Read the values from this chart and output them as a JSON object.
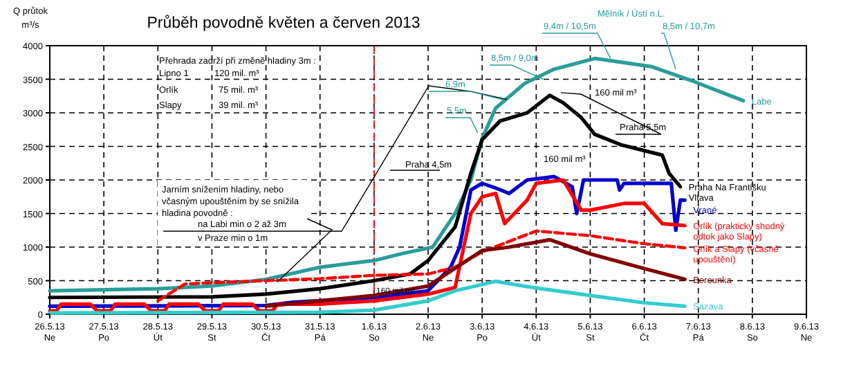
{
  "chart_data": {
    "type": "line",
    "title": "Průběh povodně květen a červen 2013",
    "ylabel": "Q průtok\nm³/s",
    "xlim": [
      "2013-05-26T00:00",
      "2013-06-09T00:00"
    ],
    "xticks": [
      {
        "value": "2013-05-26",
        "label": "26.5.13\nNe"
      },
      {
        "value": "2013-05-27",
        "label": "27.5.13\nPo"
      },
      {
        "value": "2013-05-28",
        "label": "28.5.13\nÚt"
      },
      {
        "value": "2013-05-29",
        "label": "29.5.13\nSt"
      },
      {
        "value": "2013-05-30",
        "label": "30.5.13\nČt"
      },
      {
        "value": "2013-05-31",
        "label": "31.5.13\nPá"
      },
      {
        "value": "2013-06-01",
        "label": "1.6.13\nSo"
      },
      {
        "value": "2013-06-02",
        "label": "2.6.13\nNe"
      },
      {
        "value": "2013-06-03",
        "label": "3.6.13\nPo"
      },
      {
        "value": "2013-06-04",
        "label": "4.6.13\nÚt"
      },
      {
        "value": "2013-06-05",
        "label": "5.6.13\nSt"
      },
      {
        "value": "2013-06-06",
        "label": "6.6.13\nČt"
      },
      {
        "value": "2013-06-07",
        "label": "7.6.13\nPá"
      },
      {
        "value": "2013-06-08",
        "label": "8.6.13\nSo"
      },
      {
        "value": "2013-06-09",
        "label": "9.6.13\nNe"
      }
    ],
    "ylim": [
      0,
      4000
    ],
    "yticks": [
      0,
      500,
      1000,
      1500,
      2000,
      2500,
      3000,
      3500,
      4000
    ],
    "grid": true,
    "ref_lines": [
      {
        "axis": "x",
        "value": "2013-06-01",
        "color": "#ff0000",
        "line_style": "dashed"
      }
    ],
    "series": [
      {
        "name": "Labe",
        "color": "#2a9d9a",
        "x": [
          "2013-05-26T00:00",
          "2013-05-28T00:00",
          "2013-05-29T00:00",
          "2013-05-30T00:00",
          "2013-05-31T00:00",
          "2013-06-01T00:00",
          "2013-06-01T12:00",
          "2013-06-02T02:00",
          "2013-06-02T12:00",
          "2013-06-02T19:00",
          "2013-06-03T00:00",
          "2013-06-03T06:00",
          "2013-06-03T19:00",
          "2013-06-04T08:00",
          "2013-06-05T02:00",
          "2013-06-06T03:00",
          "2013-06-06T21:00",
          "2013-06-07T20:00"
        ],
        "values": [
          350,
          380,
          420,
          520,
          700,
          800,
          900,
          1000,
          1500,
          2000,
          2620,
          3070,
          3440,
          3650,
          3810,
          3690,
          3480,
          3180
        ]
      },
      {
        "name": "Praha Na Františku\nVltava",
        "color": "#000000",
        "x": [
          "2013-05-26T00:00",
          "2013-05-29T00:00",
          "2013-05-30T00:00",
          "2013-05-31T00:00",
          "2013-06-01T00:00",
          "2013-06-01T16:00",
          "2013-06-02T00:00",
          "2013-06-02T12:00",
          "2013-06-02T19:00",
          "2013-06-03T00:00",
          "2013-06-03T08:00",
          "2013-06-03T20:00",
          "2013-06-04T06:00",
          "2013-06-04T12:00",
          "2013-06-04T20:00",
          "2013-06-05T02:00",
          "2013-06-05T14:00",
          "2013-06-06T08:00",
          "2013-06-06T11:00",
          "2013-06-06T16:00"
        ],
        "values": [
          250,
          260,
          300,
          380,
          500,
          600,
          800,
          1300,
          2100,
          2600,
          2880,
          3000,
          3260,
          3150,
          2930,
          2680,
          2520,
          2370,
          2100,
          1900
        ]
      },
      {
        "name": "Vrané",
        "color": "#0000cc",
        "x": [
          "2013-05-26T00:00",
          "2013-05-30T00:00",
          "2013-05-30T12:00",
          "2013-06-01T00:00",
          "2013-06-02T00:00",
          "2013-06-02T10:00",
          "2013-06-02T14:00",
          "2013-06-02T19:00",
          "2013-06-03T00:00",
          "2013-06-03T06:00",
          "2013-06-03T12:00",
          "2013-06-03T20:00",
          "2013-06-04T08:00",
          "2013-06-04T16:00",
          "2013-06-04T18:00",
          "2013-06-04T21:00",
          "2013-06-05T12:00",
          "2013-06-05T13:00",
          "2013-06-05T15:00",
          "2013-06-06T12:00",
          "2013-06-06T14:00",
          "2013-06-06T16:00",
          "2013-06-06T18:00"
        ],
        "values": [
          120,
          130,
          180,
          250,
          350,
          700,
          1000,
          1850,
          1950,
          1880,
          1800,
          2000,
          2050,
          1900,
          1500,
          2000,
          2000,
          1850,
          1950,
          1950,
          1250,
          1700,
          1700
        ]
      },
      {
        "name": "Orlík  (prakticky shodný\nodtok jako Slapy)",
        "color": "#ff0000",
        "x": [
          "2013-05-26T00:00",
          "2013-05-26T03:00",
          "2013-05-26T05:00",
          "2013-05-26T18:00",
          "2013-05-26T21:00",
          "2013-05-27T03:00",
          "2013-05-27T05:00",
          "2013-05-27T18:00",
          "2013-05-27T21:00",
          "2013-05-28T03:00",
          "2013-05-28T05:00",
          "2013-05-28T18:00",
          "2013-05-28T21:00",
          "2013-05-29T03:00",
          "2013-05-29T05:00",
          "2013-05-29T18:00",
          "2013-05-29T21:00",
          "2013-05-30T03:00",
          "2013-05-30T05:00",
          "2013-05-31T00:00",
          "2013-06-01T00:00",
          "2013-06-02T00:00",
          "2013-06-02T12:00",
          "2013-06-02T19:00",
          "2013-06-03T00:00",
          "2013-06-03T06:00",
          "2013-06-03T10:00",
          "2013-06-03T20:00",
          "2013-06-04T00:00",
          "2013-06-04T12:00",
          "2013-06-04T20:00",
          "2013-06-05T00:00",
          "2013-06-05T15:00",
          "2013-06-06T00:00",
          "2013-06-06T08:00",
          "2013-06-06T18:00"
        ],
        "values": [
          50,
          50,
          150,
          150,
          50,
          50,
          150,
          150,
          50,
          50,
          150,
          150,
          50,
          50,
          150,
          150,
          50,
          50,
          150,
          150,
          200,
          300,
          400,
          1500,
          1750,
          1800,
          1350,
          1700,
          1950,
          2000,
          1550,
          1550,
          1650,
          1650,
          1350,
          1320
        ]
      },
      {
        "name": "Orlík a Slapy (včasné\nupouštění)",
        "color": "#ff0000",
        "line_style": "dashed",
        "x": [
          "2013-05-28T00:00",
          "2013-05-28T12:00",
          "2013-05-29T00:00",
          "2013-05-30T00:00",
          "2013-05-31T00:00",
          "2013-06-01T00:00",
          "2013-06-02T00:00",
          "2013-06-02T12:00",
          "2013-06-03T00:00",
          "2013-06-04T00:00",
          "2013-06-05T00:00",
          "2013-06-06T00:00",
          "2013-06-06T18:00"
        ],
        "values": [
          200,
          450,
          470,
          500,
          530,
          580,
          600,
          700,
          930,
          1240,
          1170,
          1050,
          990
        ]
      },
      {
        "name": "Berounka",
        "color": "#800000",
        "x": [
          "2013-05-30T00:00",
          "2013-05-31T00:00",
          "2013-06-01T00:00",
          "2013-06-02T00:00",
          "2013-06-03T00:00",
          "2013-06-03T12:00",
          "2013-06-04T06:00",
          "2013-06-05T00:00",
          "2013-06-06T00:00",
          "2013-06-06T18:00"
        ],
        "values": [
          120,
          200,
          280,
          420,
          950,
          1000,
          1110,
          900,
          680,
          520
        ]
      },
      {
        "name": "Sázava",
        "color": "#33cccc",
        "x": [
          "2013-05-26T00:00",
          "2013-05-31T00:00",
          "2013-06-01T00:00",
          "2013-06-02T00:00",
          "2013-06-02T12:00",
          "2013-06-03T06:00",
          "2013-06-04T00:00",
          "2013-06-05T00:00",
          "2013-06-06T00:00",
          "2013-06-06T18:00"
        ],
        "values": [
          20,
          30,
          60,
          200,
          350,
          490,
          390,
          280,
          170,
          120
        ]
      }
    ],
    "annotations": [
      "Přehrada zadrží při změně hladiny 3m :",
      "Lipno 1",
      "120 mil. m³",
      "Orlík",
      "75 mil. m³",
      "Slapy",
      "39 mil. m³",
      {
        "text": "Jarním snížením hladiny, nebo\nvčasným upouštěním by se snížila\nhladina povodně :",
        "x": "2013-05-30T05:00",
        "y": 480
      },
      {
        "text": "na Labi min o 2 až 3m",
        "x": "2013-06-03T11:00",
        "y": 3200
      },
      "v Praze min o 1m",
      "Mělník / Ústí n.L.",
      {
        "text": "9,4m / 10,5m",
        "x": "2013-06-05T09:00",
        "y": 3810
      },
      {
        "text": "8,5m / 10,7m",
        "x": "2013-06-06T14:00",
        "y": 3650
      },
      {
        "text": "8,5m / 9,0m",
        "x": "2013-06-04T03:00",
        "y": 3500
      },
      {
        "text": "6,9m",
        "x": "2013-06-03T11:00",
        "y": 3180
      },
      {
        "text": "5,5m",
        "x": "2013-06-02T22:00",
        "y": 2700
      },
      "Praha 4,5m",
      {
        "text": "Praha 5,5m",
        "x": "2013-06-04T11:00",
        "y": 3300
      },
      "160 mil m³",
      "160 mil m³",
      "160 mil m³"
    ]
  }
}
